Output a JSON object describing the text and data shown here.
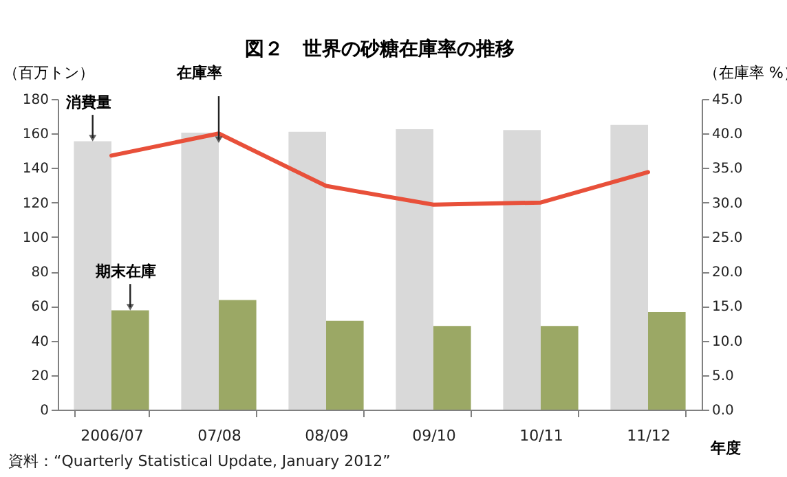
{
  "chart_data": {
    "type": "bar",
    "title": "図２　世界の砂糖在庫率の推移",
    "ylabel": "（百万トン）",
    "y2label": "（在庫率 %）",
    "xlabel": "年度",
    "annotations": [
      "資料：“Quarterly Statistical Update, January 2012”"
    ],
    "categories": [
      "2006/07",
      "07/08",
      "08/09",
      "09/10",
      "10/11",
      "11/12"
    ],
    "series": [
      {
        "name": "消費量",
        "color": "#d9d9d9",
        "values": [
          155.5,
          160.5,
          161,
          162.5,
          162,
          165
        ]
      },
      {
        "name": "期末在庫",
        "color": "#9ba865",
        "values": [
          57.5,
          63.5,
          51.5,
          48.5,
          48.5,
          56.5
        ]
      },
      {
        "name": "在庫率",
        "type": "line",
        "axis": "y2",
        "color": "#e8503a",
        "values": [
          36.8,
          40.0,
          32.4,
          29.7,
          30.0,
          34.4
        ]
      }
    ],
    "ylim": [
      0,
      180
    ],
    "yticks": [
      0,
      20,
      40,
      60,
      80,
      100,
      120,
      140,
      160,
      180
    ],
    "y2lim": [
      0,
      45
    ],
    "y2ticks": [
      {
        "value": 0,
        "label": "0.0"
      },
      {
        "value": 5,
        "label": "5.0"
      },
      {
        "value": 10,
        "label": "10.0"
      },
      {
        "value": 15,
        "label": "15.0"
      },
      {
        "value": 20,
        "label": "20.0"
      },
      {
        "value": 25,
        "label": "25.0"
      },
      {
        "value": 30,
        "label": "30.0"
      },
      {
        "value": 35,
        "label": "35.0"
      },
      {
        "value": 40,
        "label": "40.0"
      },
      {
        "value": 45,
        "label": "45.0"
      }
    ],
    "legend": false,
    "grid": false
  }
}
